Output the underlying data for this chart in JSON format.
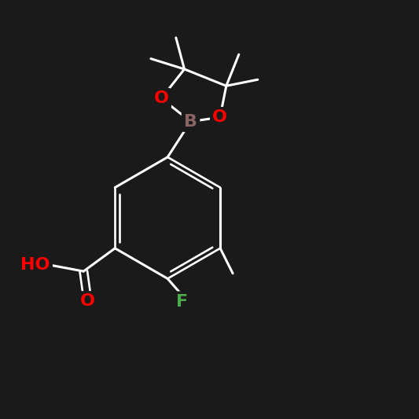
{
  "background_color": "#1a1a1a",
  "bond_color": "#ffffff",
  "bond_width": 2.2,
  "atoms": {
    "B": {
      "color": "#8B6464"
    },
    "O": {
      "color": "#ff0000"
    },
    "F": {
      "color": "#4daa4d"
    },
    "HO": {
      "color": "#ff0000"
    }
  },
  "figsize": [
    5.33,
    5.33
  ],
  "dpi": 100,
  "xlim": [
    0,
    10
  ],
  "ylim": [
    0,
    10
  ]
}
